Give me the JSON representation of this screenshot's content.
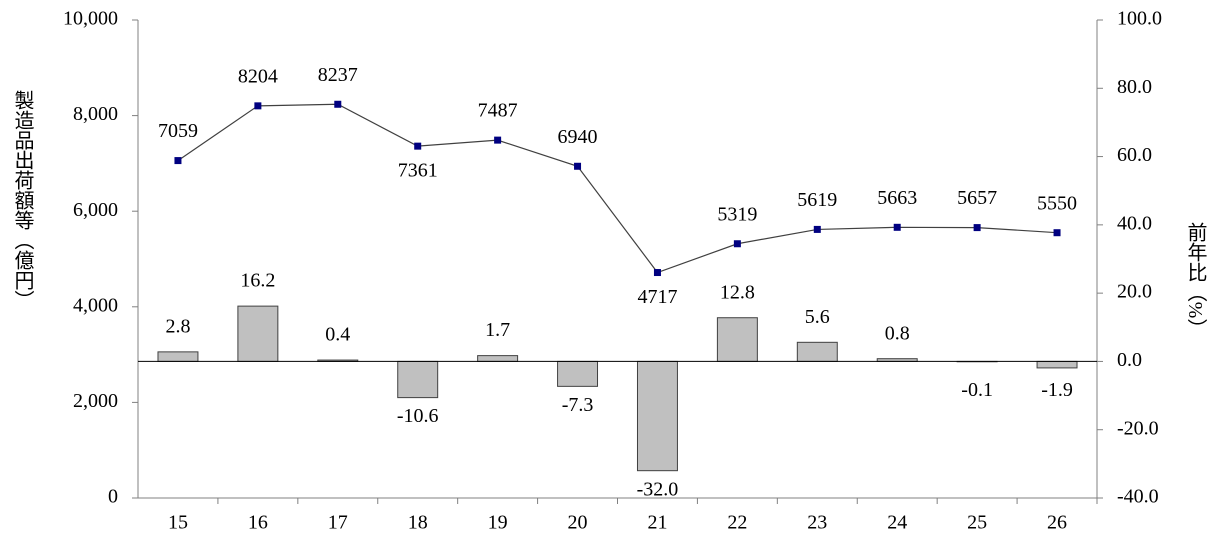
{
  "chart_data": {
    "type": "combo",
    "y_label": "製造品出荷額等（億円）",
    "y2_label": "前年比（%）",
    "categories": [
      "15",
      "16",
      "17",
      "18",
      "19",
      "20",
      "21",
      "22",
      "23",
      "24",
      "25",
      "26"
    ],
    "ylim": [
      0,
      10000
    ],
    "yticks": [
      0,
      {
        "value": 2000,
        "label": "2,000"
      },
      {
        "value": 4000,
        "label": "4,000"
      },
      {
        "value": 6000,
        "label": "6,000"
      },
      {
        "value": 8000,
        "label": "8,000"
      },
      {
        "value": 10000,
        "label": "10,000"
      }
    ],
    "y2lim": [
      -40,
      100
    ],
    "y2ticks": [
      {
        "value": -40,
        "label": "-40.0"
      },
      {
        "value": -20,
        "label": "-20.0"
      },
      {
        "value": 0,
        "label": "0.0"
      },
      {
        "value": 20,
        "label": "20.0"
      },
      {
        "value": 40,
        "label": "40.0"
      },
      {
        "value": 60,
        "label": "60.0"
      },
      {
        "value": 80,
        "label": "80.0"
      },
      {
        "value": 100,
        "label": "100.0"
      }
    ],
    "series": [
      {
        "type": "bar",
        "axis": "y2",
        "color": "#c0c0c0",
        "values": [
          2.8,
          16.2,
          0.4,
          -10.6,
          1.7,
          -7.3,
          -32.0,
          12.8,
          5.6,
          0.8,
          -0.1,
          -1.9
        ],
        "value_labels": [
          "2.8",
          "16.2",
          "0.4",
          "-10.6",
          "1.7",
          "-7.3",
          "-32.0",
          "12.8",
          "5.6",
          "0.8",
          "-0.1",
          "-1.9"
        ]
      },
      {
        "type": "line",
        "color": "#000080",
        "values": [
          7059,
          8204,
          8237,
          7361,
          7487,
          6940,
          4717,
          5319,
          5619,
          5663,
          5657,
          5550
        ]
      }
    ]
  }
}
